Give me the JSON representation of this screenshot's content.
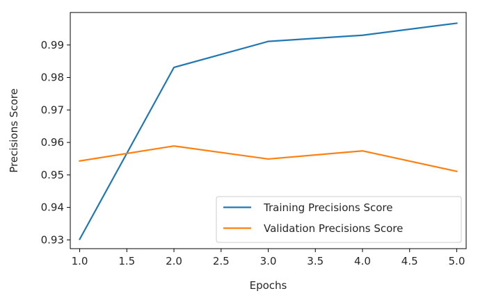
{
  "chart_data": {
    "type": "line",
    "title": "",
    "xlabel": "Epochs",
    "ylabel": "Precisions Score",
    "xlim": [
      0.9,
      5.1
    ],
    "ylim": [
      0.9273,
      1.0
    ],
    "xticks": [
      1.0,
      1.5,
      2.0,
      2.5,
      3.0,
      3.5,
      4.0,
      4.5,
      5.0
    ],
    "xtick_labels": [
      "1.0",
      "1.5",
      "2.0",
      "2.5",
      "3.0",
      "3.5",
      "4.0",
      "4.5",
      "5.0"
    ],
    "yticks": [
      0.93,
      0.94,
      0.95,
      0.96,
      0.97,
      0.98,
      0.99
    ],
    "ytick_labels": [
      "0.93",
      "0.94",
      "0.95",
      "0.96",
      "0.97",
      "0.98",
      "0.99"
    ],
    "grid": false,
    "legend_position": "lower-right",
    "x": [
      1,
      2,
      3,
      4,
      5
    ],
    "series": [
      {
        "name": "Training Precisions Score",
        "color": "#1f77b4",
        "values": [
          0.9302,
          0.9831,
          0.9911,
          0.993,
          0.9967
        ]
      },
      {
        "name": "Validation Precisions Score",
        "color": "#ff7f0e",
        "values": [
          0.9543,
          0.9589,
          0.9549,
          0.9574,
          0.9511
        ]
      }
    ]
  }
}
